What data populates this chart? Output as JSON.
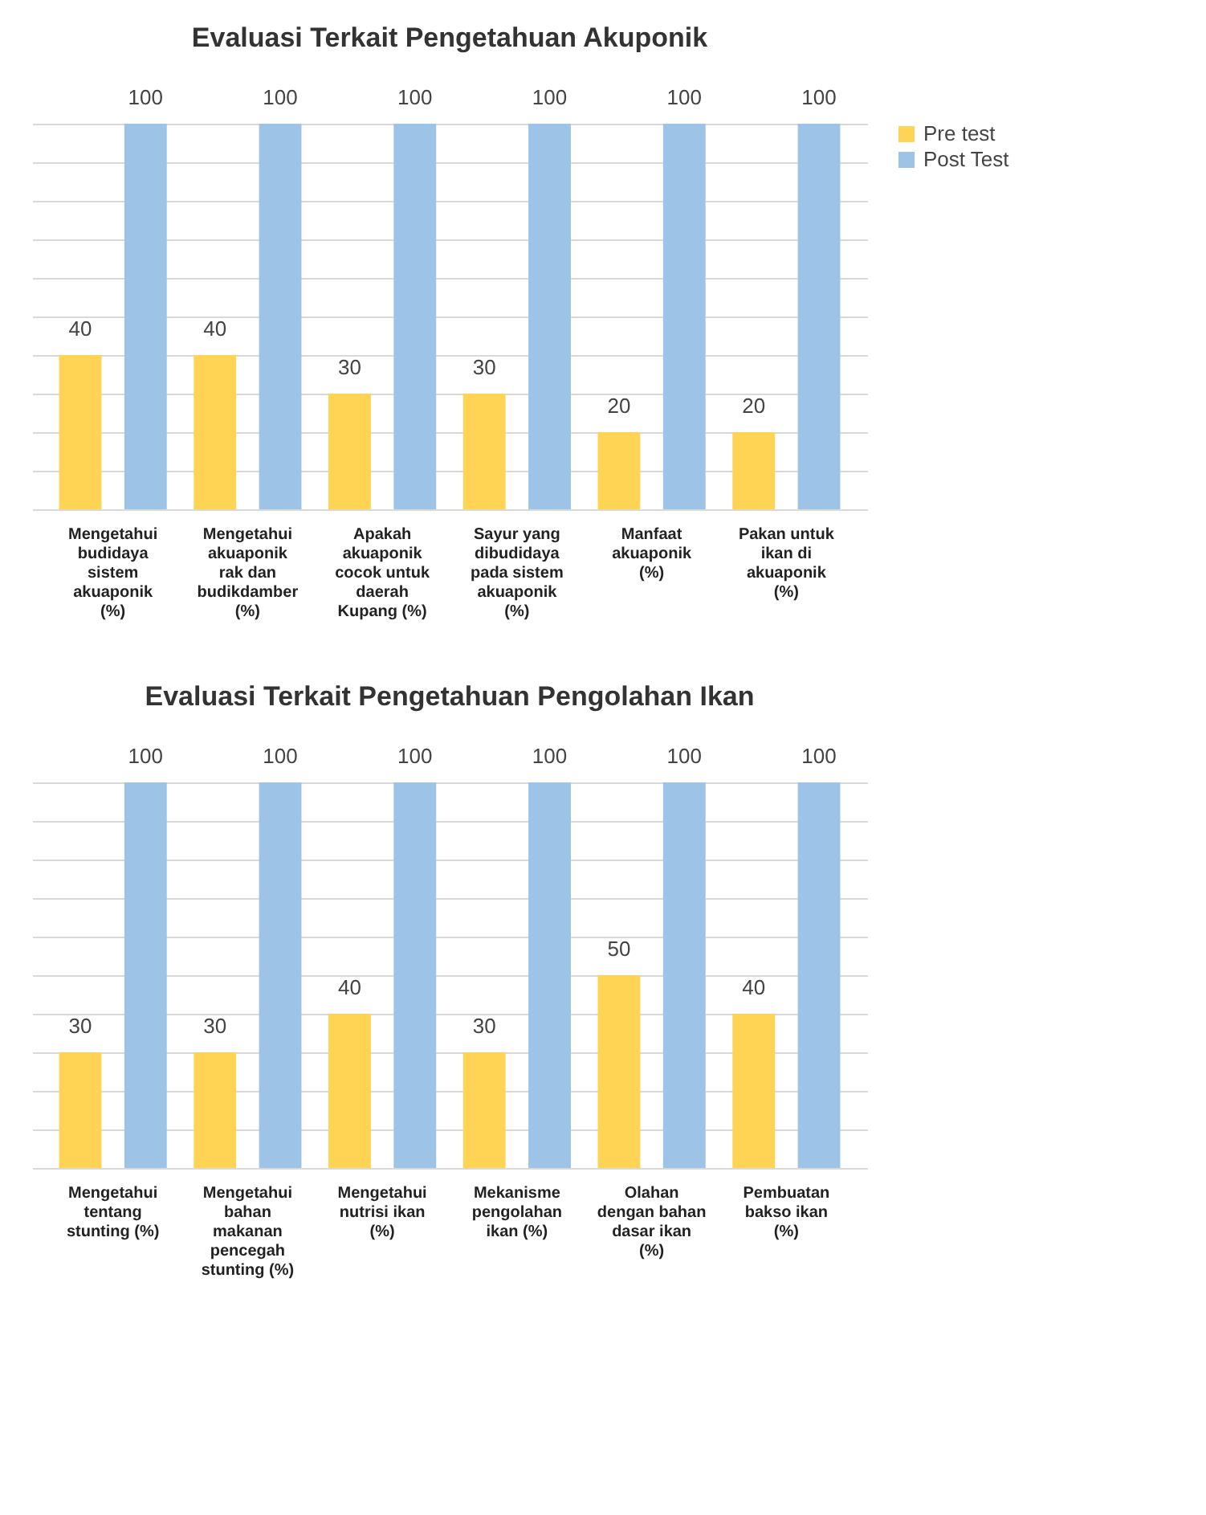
{
  "chart_data": [
    {
      "type": "bar",
      "title": "Evaluasi Terkait Pengetahuan Akuponik",
      "categories": [
        "Mengetahui budidaya sistem akuaponik (%)",
        "Mengetahui akuaponik rak dan budikdamber (%)",
        "Apakah akuaponik cocok untuk daerah Kupang (%)",
        "Sayur yang dibudidaya pada sistem akuaponik (%)",
        "Manfaat akuaponik (%)",
        "Pakan untuk ikan di akuaponik (%)"
      ],
      "series": [
        {
          "name": "Pre test",
          "color": "#ffd454",
          "values": [
            40,
            40,
            30,
            30,
            20,
            20
          ]
        },
        {
          "name": "Post Test",
          "color": "#9dc3e6",
          "values": [
            100,
            100,
            100,
            100,
            100,
            100
          ]
        }
      ],
      "ylim": [
        0,
        100
      ],
      "yticks": [
        {
          "value": 0,
          "label": null
        },
        {
          "value": 10,
          "label": null
        },
        {
          "value": 20,
          "label": null
        },
        {
          "value": 30,
          "label": null
        },
        {
          "value": 40,
          "label": null
        },
        {
          "value": 50,
          "label": null
        },
        {
          "value": 60,
          "label": null
        },
        {
          "value": 70,
          "label": null
        },
        {
          "value": 80,
          "label": null
        },
        {
          "value": 90,
          "label": null
        },
        {
          "value": 100,
          "label": null
        }
      ],
      "tick_labels": "x",
      "grid": "y",
      "legend": "right",
      "data_labels": true
    },
    {
      "type": "bar",
      "title": "Evaluasi Terkait Pengetahuan Pengolahan Ikan",
      "categories": [
        "Mengetahui tentang stunting (%)",
        "Mengetahui bahan makanan pencegah stunting (%)",
        "Mengetahui nutrisi ikan (%)",
        "Mekanisme pengolahan ikan (%)",
        "Olahan dengan bahan dasar ikan (%)",
        "Pembuatan bakso ikan (%)"
      ],
      "series": [
        {
          "name": "Pre test",
          "color": "#ffd454",
          "values": [
            30,
            30,
            40,
            30,
            50,
            40
          ]
        },
        {
          "name": "Post Test",
          "color": "#9dc3e6",
          "values": [
            100,
            100,
            100,
            100,
            100,
            100
          ]
        }
      ],
      "ylim": [
        0,
        100
      ],
      "yticks": [
        {
          "value": 0,
          "label": null
        },
        {
          "value": 10,
          "label": null
        },
        {
          "value": 20,
          "label": null
        },
        {
          "value": 30,
          "label": null
        },
        {
          "value": 40,
          "label": null
        },
        {
          "value": 50,
          "label": null
        },
        {
          "value": 60,
          "label": null
        },
        {
          "value": 70,
          "label": null
        },
        {
          "value": 80,
          "label": null
        },
        {
          "value": 90,
          "label": null
        },
        {
          "value": 100,
          "label": null
        }
      ],
      "tick_labels": "x",
      "grid": "y",
      "legend": "right",
      "data_labels": true
    }
  ]
}
